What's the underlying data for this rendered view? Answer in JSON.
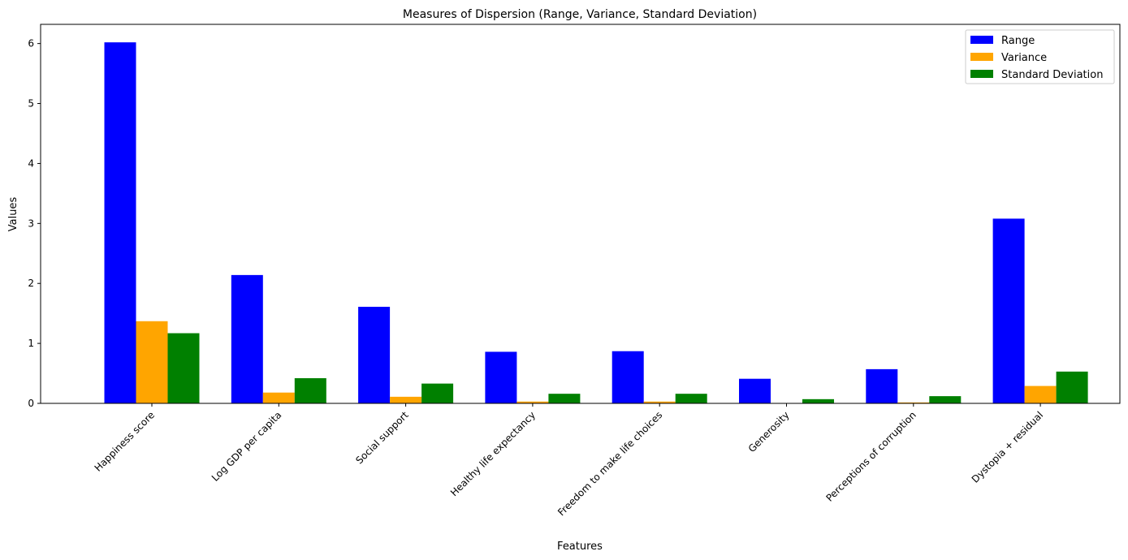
{
  "chart_data": {
    "type": "bar",
    "title": "Measures of Dispersion (Range, Variance, Standard Deviation)",
    "xlabel": "Features",
    "ylabel": "Values",
    "categories": [
      "Happiness score",
      "Log GDP per capita",
      "Social support",
      "Healthy life expectancy",
      "Freedom to make life choices",
      "Generosity",
      "Perceptions of corruption",
      "Dystopia + residual"
    ],
    "series": [
      {
        "name": "Range",
        "color": "#0000ff",
        "values": [
          6.02,
          2.14,
          1.61,
          0.86,
          0.87,
          0.41,
          0.57,
          3.08
        ]
      },
      {
        "name": "Variance",
        "color": "#ffa500",
        "values": [
          1.37,
          0.18,
          0.11,
          0.03,
          0.03,
          0.005,
          0.015,
          0.29
        ]
      },
      {
        "name": "Standard Deviation",
        "color": "#008000",
        "values": [
          1.17,
          0.42,
          0.33,
          0.16,
          0.16,
          0.07,
          0.12,
          0.53
        ]
      }
    ],
    "ylim": [
      0,
      6.32
    ],
    "yticks": [
      "0",
      "1",
      "2",
      "3",
      "4",
      "5",
      "6"
    ],
    "grid": false,
    "legend_position": "top-right"
  }
}
